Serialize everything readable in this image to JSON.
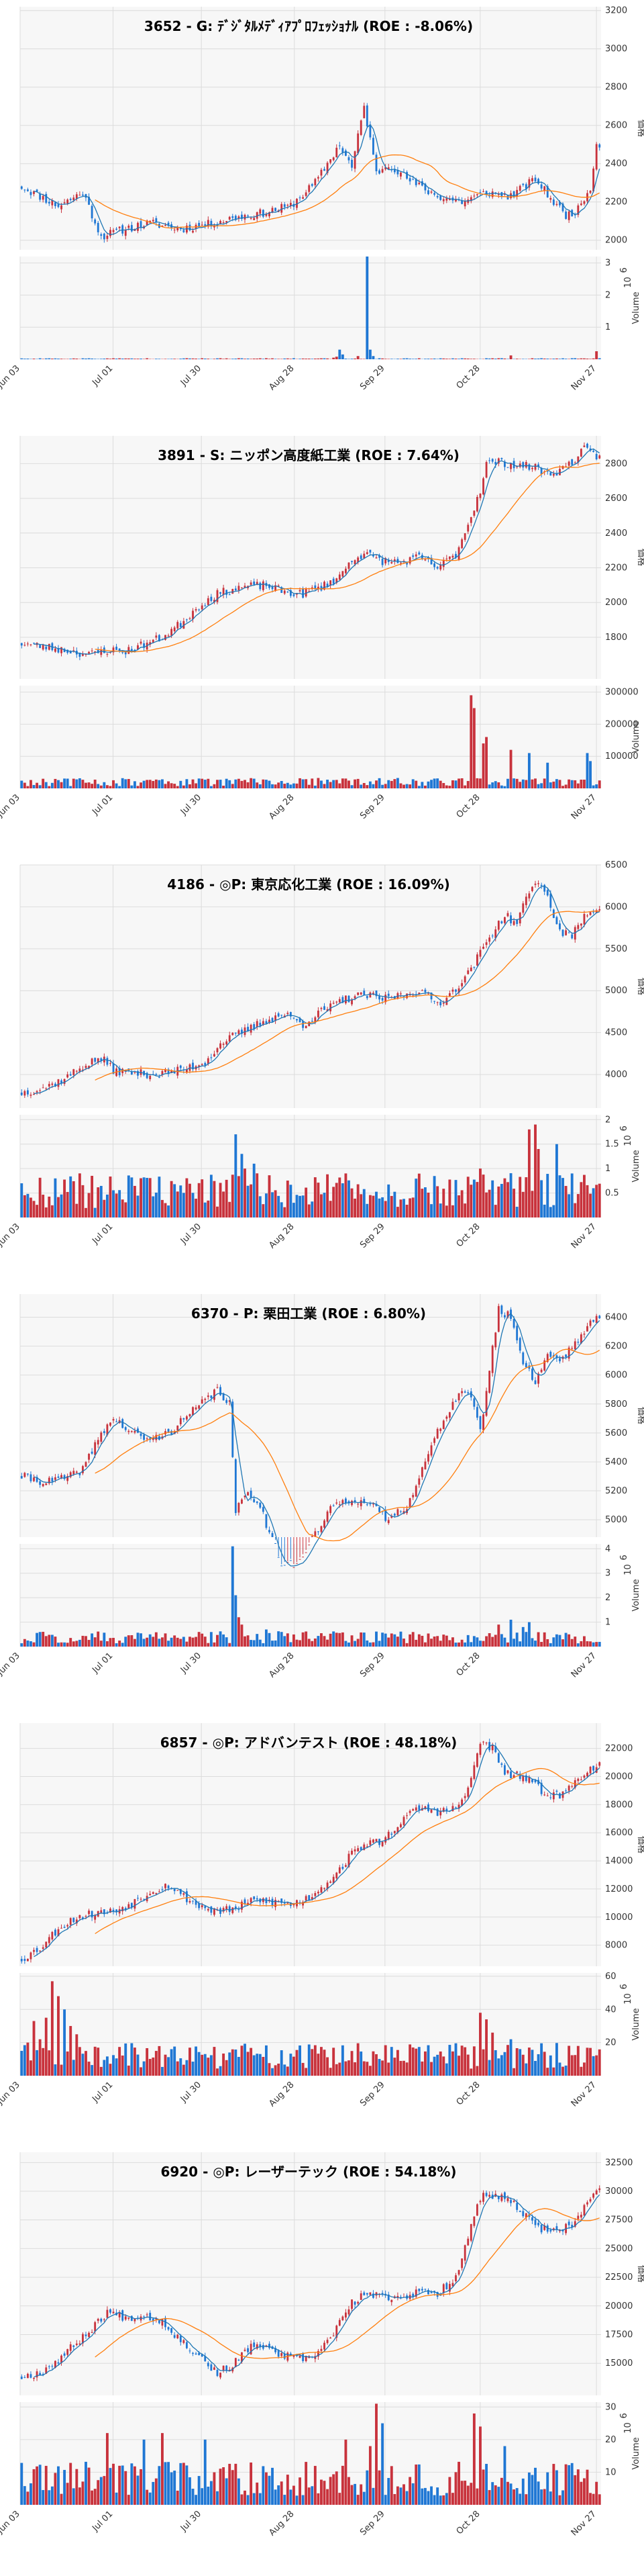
{
  "colors": {
    "up": "#c8323c",
    "down": "#1f77d4",
    "ma_short": "#1f77b4",
    "ma_long": "#ff7f0e",
    "panel_bg": "#f7f7f7",
    "grid": "#dcdcdc"
  },
  "x_tick_labels": [
    "Jun 03",
    "Jul 01",
    "Jul 30",
    "Aug 28",
    "Sep 29",
    "Oct 28",
    "Nov 27"
  ],
  "chart_data": [
    {
      "type": "candlestick",
      "title": "3652 - G: ﾃﾞｼﾞﾀﾙﾒﾃﾞｨｱﾌﾟﾛﾌｪｯｼｮﾅﾙ (ROE : -8.06%)",
      "ylabel": "価格",
      "vol_label": "Volume",
      "vol_exp": "6",
      "ylim": [
        1950,
        3220
      ],
      "yticks": [
        2000,
        2200,
        2400,
        2600,
        2800,
        3000,
        3200
      ],
      "vol_max": 3.2,
      "vol_ticks": [
        1,
        2,
        3
      ],
      "anchors": [
        [
          0,
          2280
        ],
        [
          6,
          2230
        ],
        [
          12,
          2180
        ],
        [
          20,
          2250
        ],
        [
          26,
          2020
        ],
        [
          34,
          2060
        ],
        [
          42,
          2090
        ],
        [
          52,
          2060
        ],
        [
          60,
          2080
        ],
        [
          70,
          2120
        ],
        [
          78,
          2140
        ],
        [
          88,
          2180
        ],
        [
          96,
          2300
        ],
        [
          104,
          2500
        ],
        [
          108,
          2380
        ],
        [
          112,
          2700
        ],
        [
          116,
          2350
        ],
        [
          120,
          2400
        ],
        [
          128,
          2300
        ],
        [
          136,
          2230
        ],
        [
          144,
          2200
        ],
        [
          152,
          2250
        ],
        [
          160,
          2230
        ],
        [
          168,
          2320
        ],
        [
          174,
          2200
        ],
        [
          178,
          2130
        ],
        [
          182,
          2160
        ],
        [
          186,
          2280
        ],
        [
          188,
          2500
        ]
      ],
      "vol_spikes": {
        "102": 0.05,
        "103": 0.08,
        "104": 0.3,
        "105": 0.15,
        "110": 0.1,
        "113": 3.2,
        "114": 0.3,
        "115": 0.1,
        "160": 0.12,
        "188": 0.25
      },
      "vol_base": 0.02,
      "seed": 11
    },
    {
      "type": "candlestick",
      "title": "3891 - S: ニッポン高度紙工業 (ROE : 7.64%)",
      "ylabel": "価格",
      "vol_label": "Volume",
      "vol_exp": "",
      "ylim": [
        1560,
        2960
      ],
      "yticks": [
        1800,
        2000,
        2200,
        2400,
        2600,
        2800
      ],
      "vol_max": 320000,
      "vol_ticks": [
        100000,
        200000,
        300000
      ],
      "anchors": [
        [
          0,
          1765
        ],
        [
          8,
          1745
        ],
        [
          16,
          1720
        ],
        [
          22,
          1700
        ],
        [
          28,
          1725
        ],
        [
          34,
          1720
        ],
        [
          40,
          1760
        ],
        [
          46,
          1800
        ],
        [
          52,
          1880
        ],
        [
          58,
          1980
        ],
        [
          64,
          2050
        ],
        [
          72,
          2090
        ],
        [
          80,
          2100
        ],
        [
          86,
          2060
        ],
        [
          92,
          2050
        ],
        [
          98,
          2090
        ],
        [
          104,
          2150
        ],
        [
          108,
          2250
        ],
        [
          112,
          2280
        ],
        [
          118,
          2240
        ],
        [
          124,
          2230
        ],
        [
          130,
          2260
        ],
        [
          136,
          2200
        ],
        [
          142,
          2280
        ],
        [
          146,
          2450
        ],
        [
          150,
          2650
        ],
        [
          152,
          2800
        ],
        [
          156,
          2810
        ],
        [
          162,
          2790
        ],
        [
          168,
          2780
        ],
        [
          172,
          2740
        ],
        [
          176,
          2760
        ],
        [
          180,
          2810
        ],
        [
          184,
          2880
        ],
        [
          188,
          2840
        ]
      ],
      "vol_spikes": {
        "147": 290000,
        "148": 250000,
        "151": 140000,
        "152": 160000,
        "160": 120000,
        "166": 110000,
        "172": 80000,
        "185": 110000,
        "186": 85000
      },
      "vol_base": 20000,
      "seed": 23
    },
    {
      "type": "candlestick",
      "title": "4186 - ◎P: 東京応化工業 (ROE : 16.09%)",
      "ylabel": "価格",
      "vol_label": "Volume",
      "vol_exp": "6",
      "ylim": [
        3600,
        6500
      ],
      "yticks": [
        4000,
        4500,
        5000,
        5500,
        6000,
        6500
      ],
      "vol_max": 2.1,
      "vol_ticks": [
        0.5,
        1.0,
        1.5,
        2.0
      ],
      "anchors": [
        [
          0,
          3780
        ],
        [
          8,
          3850
        ],
        [
          14,
          3950
        ],
        [
          20,
          4100
        ],
        [
          26,
          4200
        ],
        [
          30,
          4050
        ],
        [
          36,
          4020
        ],
        [
          44,
          4000
        ],
        [
          52,
          4050
        ],
        [
          60,
          4150
        ],
        [
          66,
          4400
        ],
        [
          72,
          4500
        ],
        [
          80,
          4650
        ],
        [
          86,
          4720
        ],
        [
          92,
          4600
        ],
        [
          98,
          4750
        ],
        [
          106,
          4900
        ],
        [
          112,
          4950
        ],
        [
          118,
          4900
        ],
        [
          124,
          4950
        ],
        [
          130,
          5000
        ],
        [
          136,
          4850
        ],
        [
          140,
          4950
        ],
        [
          146,
          5200
        ],
        [
          150,
          5450
        ],
        [
          154,
          5700
        ],
        [
          158,
          5900
        ],
        [
          162,
          5800
        ],
        [
          166,
          6200
        ],
        [
          170,
          6300
        ],
        [
          172,
          6100
        ],
        [
          176,
          5700
        ],
        [
          180,
          5650
        ],
        [
          184,
          5900
        ],
        [
          188,
          6000
        ]
      ],
      "vol_spikes": {
        "70": 1.7,
        "72": 1.3,
        "73": 1.0,
        "76": 1.1,
        "150": 1.0,
        "166": 1.8,
        "168": 1.9,
        "169": 1.4,
        "175": 1.5,
        "180": 0.9
      },
      "vol_base": 0.55,
      "seed": 37
    },
    {
      "type": "candlestick",
      "title": "6370 - P: 栗田工業 (ROE : 6.80%)",
      "ylabel": "価格",
      "vol_label": "Volume",
      "vol_exp": "6",
      "ylim": [
        4880,
        6560
      ],
      "yticks": [
        5000,
        5200,
        5400,
        5600,
        5800,
        6000,
        6200,
        6400
      ],
      "vol_max": 4.2,
      "vol_ticks": [
        1,
        2,
        3,
        4
      ],
      "anchors": [
        [
          0,
          5300
        ],
        [
          8,
          5260
        ],
        [
          16,
          5300
        ],
        [
          20,
          5350
        ],
        [
          26,
          5600
        ],
        [
          30,
          5700
        ],
        [
          36,
          5600
        ],
        [
          42,
          5550
        ],
        [
          48,
          5600
        ],
        [
          56,
          5750
        ],
        [
          64,
          5900
        ],
        [
          68,
          5800
        ],
        [
          70,
          5050
        ],
        [
          74,
          5200
        ],
        [
          78,
          5100
        ],
        [
          84,
          4700
        ],
        [
          90,
          4680
        ],
        [
          96,
          4900
        ],
        [
          102,
          5100
        ],
        [
          108,
          5150
        ],
        [
          114,
          5100
        ],
        [
          120,
          5000
        ],
        [
          126,
          5100
        ],
        [
          132,
          5400
        ],
        [
          138,
          5700
        ],
        [
          144,
          5900
        ],
        [
          148,
          5800
        ],
        [
          150,
          5600
        ],
        [
          152,
          5900
        ],
        [
          156,
          6450
        ],
        [
          160,
          6400
        ],
        [
          164,
          6100
        ],
        [
          168,
          5950
        ],
        [
          172,
          6150
        ],
        [
          176,
          6100
        ],
        [
          180,
          6200
        ],
        [
          184,
          6300
        ],
        [
          188,
          6400
        ]
      ],
      "vol_spikes": {
        "69": 4.1,
        "70": 2.1,
        "71": 1.2,
        "72": 0.9,
        "80": 0.7,
        "156": 0.9,
        "160": 1.1,
        "164": 0.8,
        "166": 1.0,
        "175": 0.5
      },
      "vol_base": 0.38,
      "seed": 41
    },
    {
      "type": "candlestick",
      "title": "6857 - ◎P: アドバンテスト (ROE : 48.18%)",
      "ylabel": "価格",
      "vol_label": "Volume",
      "vol_exp": "6",
      "ylim": [
        6500,
        23800
      ],
      "yticks": [
        8000,
        10000,
        12000,
        14000,
        16000,
        18000,
        20000,
        22000
      ],
      "vol_max": 62,
      "vol_ticks": [
        20,
        40,
        60
      ],
      "anchors": [
        [
          0,
          7000
        ],
        [
          6,
          7800
        ],
        [
          12,
          9200
        ],
        [
          18,
          10000
        ],
        [
          24,
          10300
        ],
        [
          30,
          10400
        ],
        [
          36,
          11000
        ],
        [
          42,
          11800
        ],
        [
          48,
          12300
        ],
        [
          52,
          11600
        ],
        [
          58,
          10800
        ],
        [
          64,
          10400
        ],
        [
          70,
          10600
        ],
        [
          76,
          11200
        ],
        [
          82,
          11100
        ],
        [
          88,
          10900
        ],
        [
          94,
          11400
        ],
        [
          100,
          12500
        ],
        [
          104,
          13400
        ],
        [
          108,
          14500
        ],
        [
          112,
          15200
        ],
        [
          118,
          15400
        ],
        [
          124,
          16800
        ],
        [
          130,
          17800
        ],
        [
          136,
          17500
        ],
        [
          142,
          17700
        ],
        [
          146,
          19000
        ],
        [
          150,
          22500
        ],
        [
          154,
          22000
        ],
        [
          158,
          20200
        ],
        [
          164,
          20000
        ],
        [
          170,
          19000
        ],
        [
          176,
          18600
        ],
        [
          180,
          19400
        ],
        [
          184,
          20300
        ],
        [
          188,
          20800
        ]
      ],
      "vol_spikes": {
        "0": 15,
        "2": 20,
        "4": 33,
        "6": 22,
        "8": 35,
        "10": 57,
        "12": 48,
        "14": 40,
        "16": 30,
        "18": 25,
        "150": 38,
        "152": 34,
        "154": 26,
        "160": 22
      },
      "vol_base": 12,
      "seed": 53
    },
    {
      "type": "candlestick",
      "title": "6920 - ◎P: レーザーテック (ROE : 54.18%)",
      "ylabel": "価格",
      "vol_label": "Volume",
      "vol_exp": "6",
      "ylim": [
        12200,
        33400
      ],
      "yticks": [
        15000,
        17500,
        20000,
        22500,
        25000,
        27500,
        30000,
        32500
      ],
      "vol_max": 31.5,
      "vol_ticks": [
        10,
        20,
        30
      ],
      "anchors": [
        [
          0,
          13800
        ],
        [
          6,
          14200
        ],
        [
          12,
          15300
        ],
        [
          18,
          16800
        ],
        [
          24,
          18300
        ],
        [
          28,
          19500
        ],
        [
          34,
          19000
        ],
        [
          40,
          19200
        ],
        [
          46,
          18700
        ],
        [
          52,
          17000
        ],
        [
          58,
          15700
        ],
        [
          64,
          14100
        ],
        [
          70,
          15100
        ],
        [
          76,
          16700
        ],
        [
          82,
          16000
        ],
        [
          88,
          15500
        ],
        [
          94,
          15300
        ],
        [
          100,
          16900
        ],
        [
          104,
          18500
        ],
        [
          108,
          20200
        ],
        [
          112,
          21000
        ],
        [
          118,
          20800
        ],
        [
          124,
          20800
        ],
        [
          130,
          21200
        ],
        [
          136,
          21000
        ],
        [
          142,
          22600
        ],
        [
          146,
          26000
        ],
        [
          150,
          29500
        ],
        [
          156,
          29500
        ],
        [
          162,
          28700
        ],
        [
          168,
          26800
        ],
        [
          174,
          26700
        ],
        [
          180,
          26900
        ],
        [
          184,
          28600
        ],
        [
          188,
          30300
        ]
      ],
      "vol_spikes": {
        "28": 22,
        "40": 20,
        "46": 22,
        "60": 20,
        "106": 20,
        "114": 18,
        "116": 31,
        "118": 25,
        "148": 28,
        "150": 24,
        "158": 18
      },
      "vol_base": 8,
      "seed": 67
    }
  ]
}
